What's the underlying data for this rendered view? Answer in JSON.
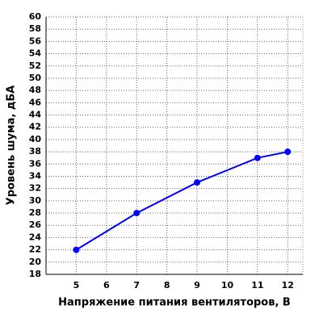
{
  "chart_data": {
    "type": "line",
    "xlabel": "Напряжение питания вентиляторов, В",
    "ylabel": "Уровень шума, дБА",
    "x": [
      5,
      7,
      9,
      11,
      12
    ],
    "series": [
      {
        "name": "Уровень шума",
        "color": "#0000ff",
        "values": [
          22,
          28,
          33,
          37,
          38
        ]
      }
    ],
    "xlim": [
      4,
      12.5
    ],
    "xticks": [
      5,
      6,
      7,
      8,
      9,
      10,
      11,
      12
    ],
    "ylim": [
      18,
      60
    ],
    "yticks": [
      18,
      20,
      22,
      24,
      26,
      28,
      30,
      32,
      34,
      36,
      38,
      40,
      42,
      44,
      46,
      48,
      50,
      52,
      54,
      56,
      58,
      60
    ],
    "grid": true
  }
}
